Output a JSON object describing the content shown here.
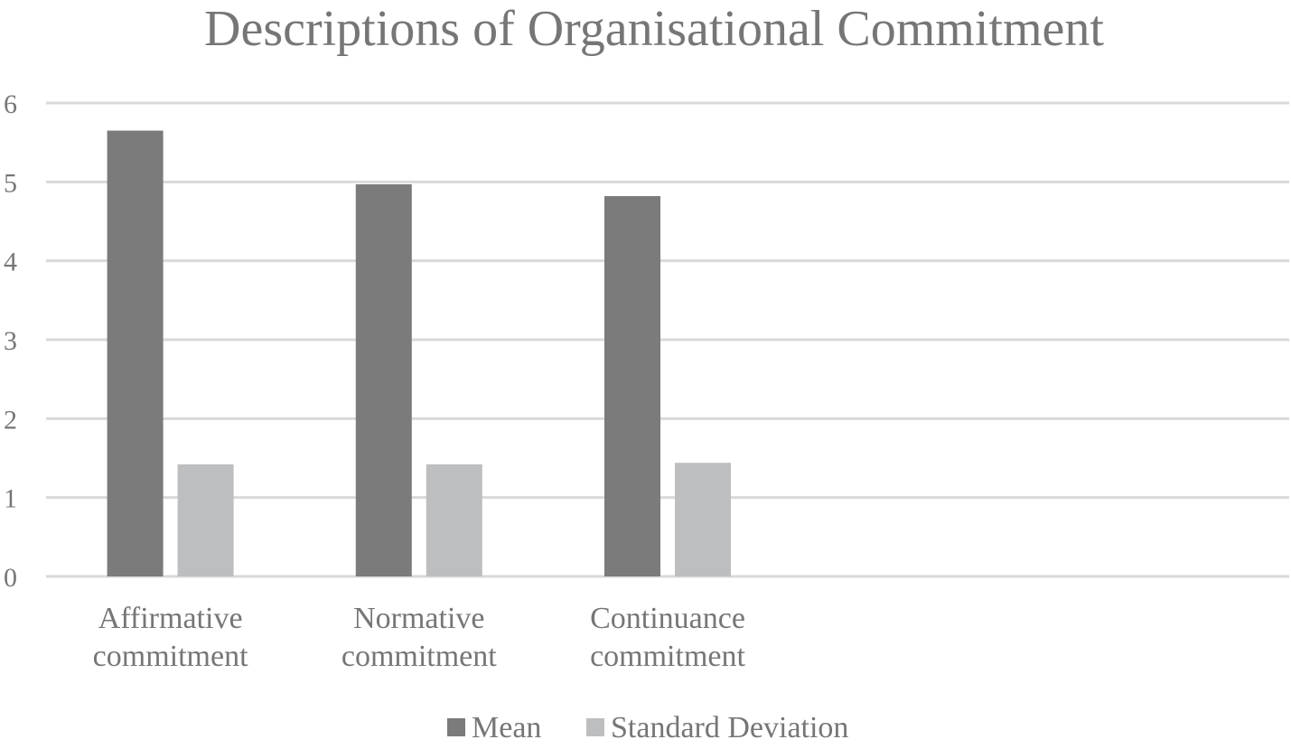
{
  "chart_data": {
    "type": "bar",
    "title": "Descriptions of Organisational Commitment",
    "categories": [
      [
        "Affirmative",
        "commitment"
      ],
      [
        "Normative",
        "commitment"
      ],
      [
        "Continuance",
        "commitment"
      ]
    ],
    "series": [
      {
        "name": "Mean",
        "values": [
          5.65,
          4.97,
          4.82
        ],
        "color": "#7b7b7c"
      },
      {
        "name": "Standard Deviation",
        "values": [
          1.42,
          1.42,
          1.44
        ],
        "color": "#bdbebf"
      }
    ],
    "ylim": [
      0,
      6
    ],
    "yticks": [
      0,
      1,
      2,
      3,
      4,
      5,
      6
    ],
    "grid": true,
    "legend_position": "bottom-center",
    "total_category_slots": 5
  }
}
